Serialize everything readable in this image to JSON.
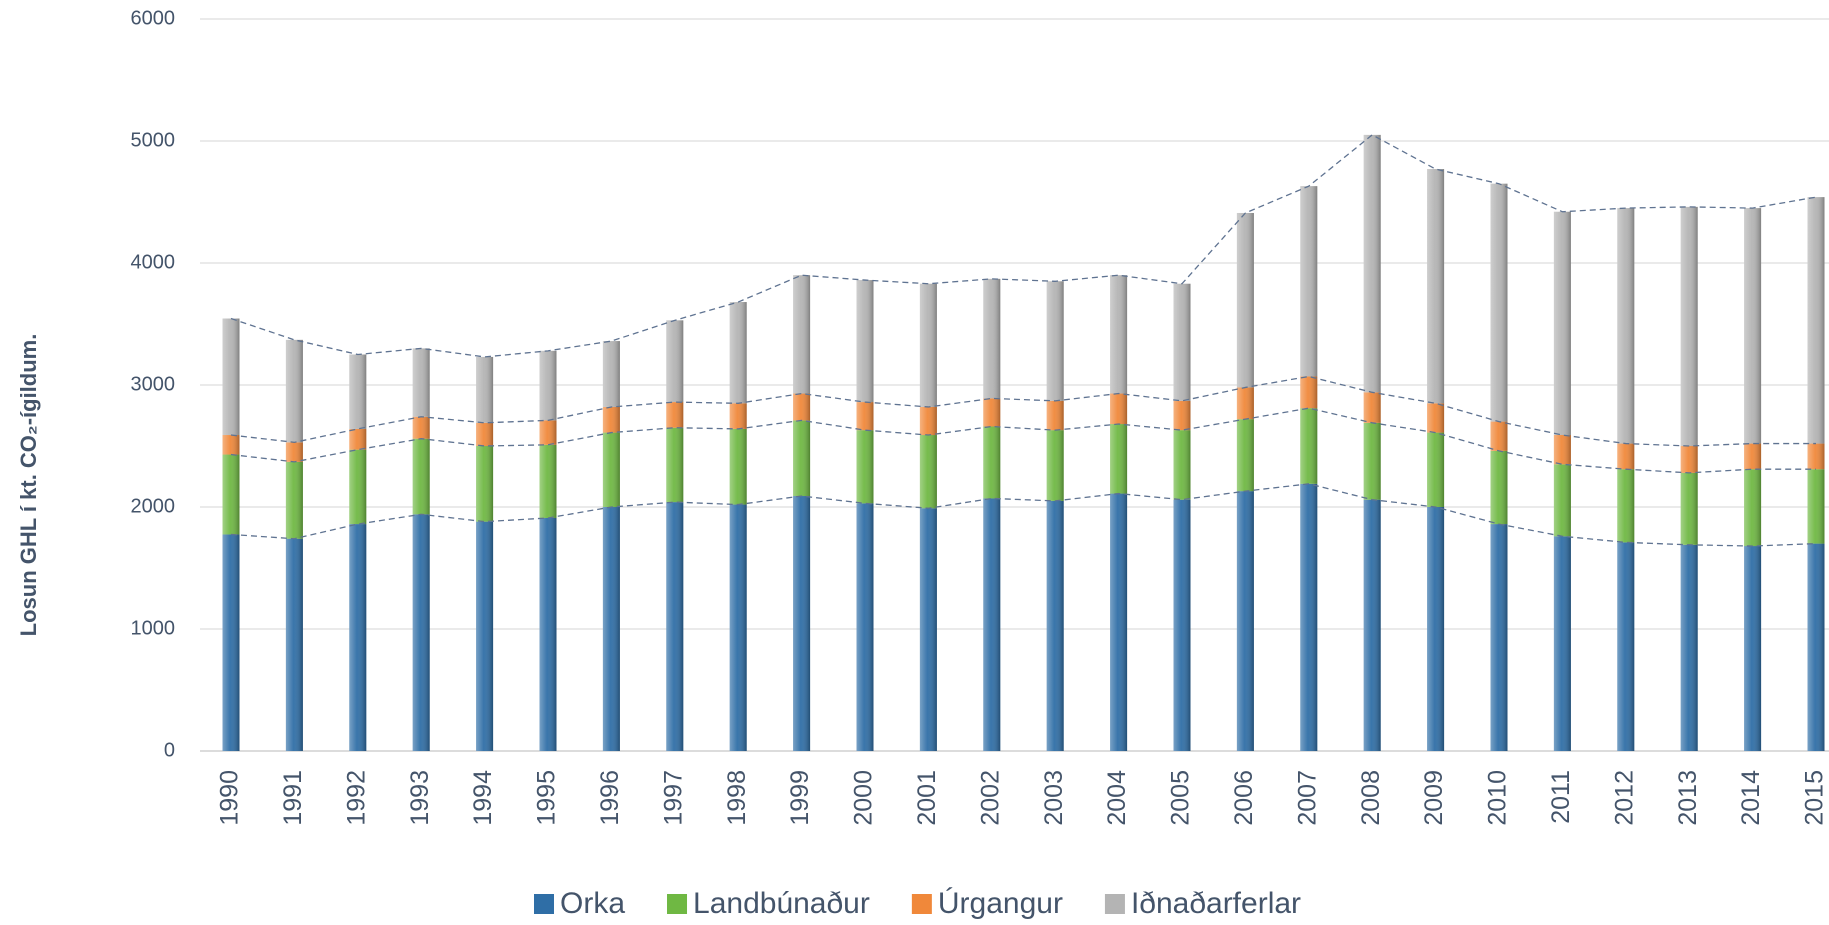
{
  "chart_data": {
    "type": "stacked_bar",
    "y_label": "Losun GHL í kt. CO₂-ígildum.",
    "categories": [
      "1990",
      "1991",
      "1992",
      "1993",
      "1994",
      "1995",
      "1996",
      "1997",
      "1998",
      "1999",
      "2000",
      "2001",
      "2002",
      "2003",
      "2004",
      "2005",
      "2006",
      "2007",
      "2008",
      "2009",
      "2010",
      "2011",
      "2012",
      "2013",
      "2014",
      "2015"
    ],
    "series": [
      {
        "name": "Orka",
        "color": "#2f6ea6",
        "values": [
          1775,
          1740,
          1860,
          1940,
          1880,
          1910,
          2000,
          2040,
          2020,
          2090,
          2030,
          1990,
          2070,
          2050,
          2110,
          2060,
          2130,
          2190,
          2060,
          2000,
          1860,
          1760,
          1710,
          1690,
          1680,
          1700
        ]
      },
      {
        "name": "Landbúnaður",
        "color": "#6fb843",
        "values": [
          655,
          630,
          610,
          620,
          620,
          600,
          610,
          610,
          620,
          620,
          600,
          600,
          590,
          580,
          570,
          570,
          590,
          620,
          630,
          610,
          600,
          590,
          600,
          590,
          630,
          610
        ]
      },
      {
        "name": "Úrgangur",
        "color": "#f0883a",
        "values": [
          160,
          160,
          170,
          180,
          190,
          200,
          210,
          210,
          210,
          220,
          230,
          230,
          230,
          240,
          250,
          240,
          260,
          260,
          250,
          240,
          240,
          240,
          210,
          220,
          210,
          210
        ]
      },
      {
        "name": "Iðnaðarferlar",
        "color": "#b4b4b4",
        "values": [
          955,
          840,
          610,
          560,
          540,
          570,
          540,
          670,
          830,
          970,
          1000,
          1010,
          980,
          980,
          970,
          960,
          1430,
          1560,
          2110,
          1920,
          1950,
          1830,
          1930,
          1960,
          1930,
          2020
        ]
      }
    ],
    "ylim": [
      0,
      6000
    ],
    "yticks": [
      0,
      1000,
      2000,
      3000,
      4000,
      5000,
      6000
    ],
    "grid": true,
    "legend": "bottom"
  }
}
